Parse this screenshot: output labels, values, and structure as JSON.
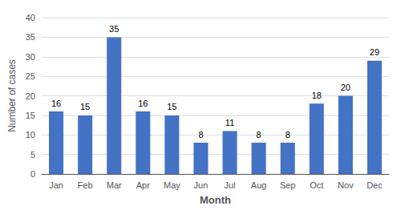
{
  "chart_data": {
    "type": "bar",
    "categories": [
      "Jan",
      "Feb",
      "Mar",
      "Apr",
      "May",
      "Jun",
      "Jul",
      "Aug",
      "Sep",
      "Oct",
      "Nov",
      "Dec"
    ],
    "values": [
      16,
      15,
      35,
      16,
      15,
      8,
      11,
      8,
      8,
      18,
      20,
      29
    ],
    "color": "#4472C4",
    "xlabel": "Month",
    "ylabel": "Number of cases",
    "ylim": [
      0,
      40
    ],
    "yticks": [
      0,
      5,
      10,
      15,
      20,
      25,
      30,
      35,
      40
    ],
    "grid": true,
    "data_labels": true
  }
}
